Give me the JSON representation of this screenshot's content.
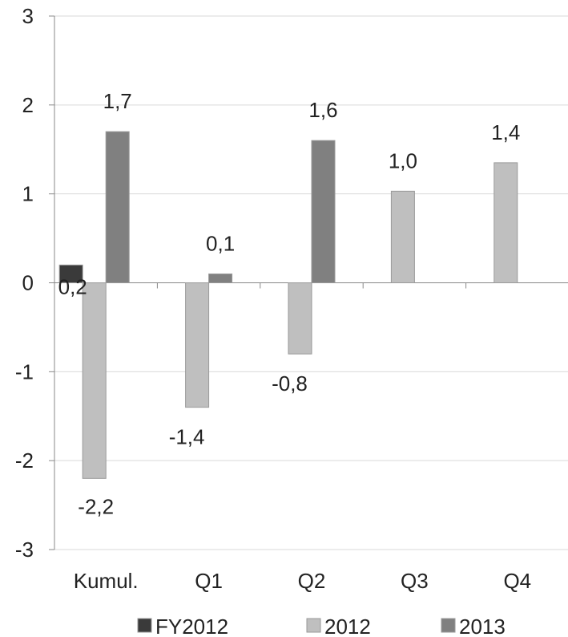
{
  "chart_data": {
    "type": "bar",
    "title": "",
    "xlabel": "",
    "ylabel": "",
    "categories": [
      "Kumul.",
      "Q1",
      "Q2",
      "Q3",
      "Q4"
    ],
    "ylim": [
      -3,
      3
    ],
    "yticks": [
      3,
      2,
      1,
      0,
      -1,
      -2,
      -3
    ],
    "grid": true,
    "legend_position": "bottom",
    "series": [
      {
        "name": "FY2012",
        "color": "#3a3a3a",
        "values": [
          0.2,
          null,
          null,
          null,
          null
        ],
        "labels": [
          "0,2",
          "",
          "",
          "",
          ""
        ]
      },
      {
        "name": "2012",
        "color": "#bfbfbf",
        "values": [
          -2.2,
          -1.4,
          -0.8,
          1.03,
          1.35
        ],
        "labels": [
          "-2,2",
          "-1,4",
          "-0,8",
          "1,0",
          "1,4"
        ]
      },
      {
        "name": "2013",
        "color": "#808080",
        "values": [
          1.7,
          0.1,
          1.6,
          null,
          null
        ],
        "labels": [
          "1,7",
          "0,1",
          "1,6",
          "",
          ""
        ]
      }
    ]
  }
}
